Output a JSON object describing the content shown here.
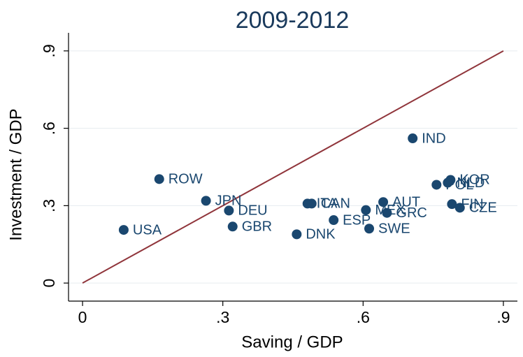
{
  "chart_data": {
    "type": "scatter",
    "title": "2009-2012",
    "x_label": "Saving / GDP",
    "y_label": "Investment / GDP",
    "color": "#1a476f",
    "label_color": "#1a476f",
    "labels": [
      "USA",
      "ROW",
      "JPN",
      "DEU",
      "GBR",
      "ITA",
      "CAN",
      "DNK",
      "ESP",
      "AUT",
      "MEX",
      "GRC",
      "SWE",
      "IND",
      "KOR",
      "POL",
      "NLD",
      "FIN",
      "CZE"
    ],
    "x": [
      0.088,
      0.164,
      0.264,
      0.313,
      0.321,
      0.481,
      0.49,
      0.458,
      0.537,
      0.643,
      0.606,
      0.651,
      0.613,
      0.706,
      0.787,
      0.757,
      0.781,
      0.79,
      0.807
    ],
    "values": [
      0.206,
      0.403,
      0.319,
      0.281,
      0.219,
      0.308,
      0.308,
      0.189,
      0.244,
      0.314,
      0.283,
      0.272,
      0.211,
      0.561,
      0.4,
      0.381,
      0.389,
      0.306,
      0.292
    ],
    "reference_line": {
      "x": [
        0,
        0.9
      ],
      "y": [
        0,
        0.9
      ],
      "color": "#90353b"
    },
    "xlim": [
      -0.03,
      0.93
    ],
    "ylim": [
      -0.07,
      0.97
    ],
    "xticks": [
      {
        "value": 0,
        "label": "0"
      },
      {
        "value": 0.3,
        "label": ".3"
      },
      {
        "value": 0.6,
        "label": ".6"
      },
      {
        "value": 0.9,
        "label": ".9"
      }
    ],
    "yticks": [
      {
        "value": 0,
        "label": "0"
      },
      {
        "value": 0.3,
        "label": ".3"
      },
      {
        "value": 0.6,
        "label": ".6"
      },
      {
        "value": 0.9,
        "label": ".9"
      }
    ],
    "grid": true
  }
}
